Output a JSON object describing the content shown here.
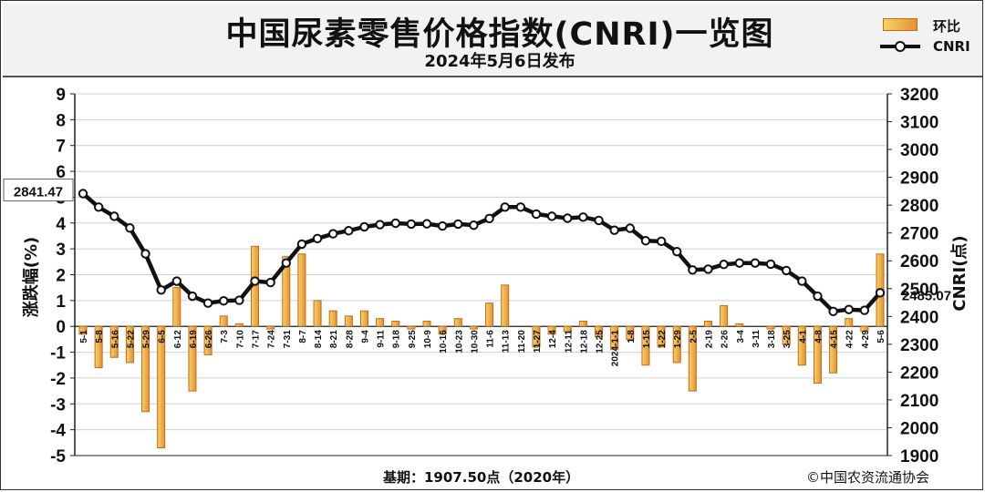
{
  "title": "中国尿素零售价格指数(CNRI)一览图",
  "subtitle": "2024年5月6日发布",
  "legend": {
    "bar_label": "环比",
    "line_label": "CNRI"
  },
  "footer": {
    "base": "基期：1907.50点（2020年）",
    "copyright": "©中国农资流通协会"
  },
  "callouts": {
    "start": "2841.47",
    "end": "2485.07"
  },
  "colors": {
    "bar_light": "#f7d36a",
    "bar_dark": "#e39133",
    "bar_border": "#c46a16",
    "line": "#111111"
  },
  "chart_data": {
    "type": "bar+line",
    "ylabel_left": "涨跌幅(%)",
    "ylabel_right": "CNRI(点)",
    "ylim_left": [
      -5,
      9
    ],
    "ylim_right": [
      1900,
      3200
    ],
    "yticks_left": [
      "9",
      "8",
      "7",
      "6",
      "5",
      "4",
      "3",
      "2",
      "1",
      "0",
      "-1",
      "-2",
      "-3",
      "-4",
      "-5"
    ],
    "yticks_right": [
      "3200",
      "3100",
      "3000",
      "2900",
      "2800",
      "2700",
      "2600",
      "2500",
      "2400",
      "2300",
      "2200",
      "2100",
      "2000",
      "1900"
    ],
    "categories": [
      "5-1",
      "5-8",
      "5-16",
      "5-22",
      "5-29",
      "6-5",
      "6-12",
      "6-19",
      "6-26",
      "7-3",
      "7-10",
      "7-17",
      "7-24",
      "7-31",
      "8-7",
      "8-14",
      "8-21",
      "8-28",
      "9-4",
      "9-11",
      "9-18",
      "9-25",
      "10-9",
      "10-16",
      "10-23",
      "10-30",
      "11-6",
      "11-13",
      "11-20",
      "11-27",
      "12-4",
      "12-11",
      "12-18",
      "12-25",
      "2024-1-1",
      "1-8",
      "1-15",
      "1-22",
      "1-29",
      "2-5",
      "2-19",
      "2-26",
      "3-4",
      "3-11",
      "3-18",
      "3-25",
      "4-1",
      "4-8",
      "4-15",
      "4-22",
      "4-29",
      "5-6"
    ],
    "series": [
      {
        "name": "环比",
        "type": "bar",
        "values": [
          -0.3,
          -1.6,
          -1.2,
          -1.4,
          -3.3,
          -4.7,
          1.5,
          -2.5,
          -1.1,
          0.4,
          0.1,
          3.1,
          -0.1,
          2.7,
          2.8,
          1.0,
          0.6,
          0.4,
          0.6,
          0.3,
          0.2,
          -0.1,
          0.2,
          -0.3,
          0.3,
          -0.1,
          0.9,
          1.6,
          0.0,
          -0.8,
          -0.3,
          -0.2,
          0.2,
          -0.4,
          -0.9,
          -0.5,
          -1.5,
          -0.8,
          -1.4,
          -2.5,
          0.2,
          0.8,
          0.1,
          0.0,
          -0.1,
          -0.7,
          -1.5,
          -2.2,
          -1.8,
          0.3,
          -0.2,
          2.8
        ]
      },
      {
        "name": "CNRI",
        "type": "line",
        "values": [
          2841.47,
          2793,
          2760,
          2718,
          2625,
          2495,
          2527,
          2473,
          2448,
          2456,
          2458,
          2527,
          2522,
          2592,
          2660,
          2680,
          2697,
          2708,
          2722,
          2730,
          2735,
          2732,
          2733,
          2725,
          2732,
          2728,
          2752,
          2793,
          2793,
          2768,
          2760,
          2753,
          2757,
          2745,
          2710,
          2717,
          2672,
          2670,
          2633,
          2567,
          2570,
          2587,
          2592,
          2592,
          2588,
          2565,
          2527,
          2473,
          2418,
          2425,
          2422,
          2485.07
        ]
      }
    ]
  }
}
